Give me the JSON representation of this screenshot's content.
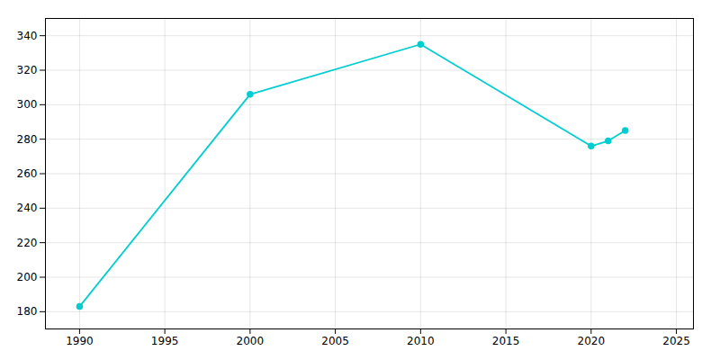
{
  "chart_data": {
    "type": "line",
    "x": [
      1990,
      2000,
      2010,
      2020,
      2021,
      2022
    ],
    "values": [
      183,
      306,
      335,
      276,
      279,
      285
    ],
    "color": "#00CED1",
    "marker": "circle",
    "xlim": [
      1988,
      2026
    ],
    "xticks": [
      1990,
      1995,
      2000,
      2005,
      2010,
      2015,
      2020,
      2025
    ],
    "ylim": [
      170,
      350
    ],
    "yticks": [
      180,
      200,
      220,
      240,
      260,
      280,
      300,
      320,
      340
    ],
    "grid": true
  }
}
